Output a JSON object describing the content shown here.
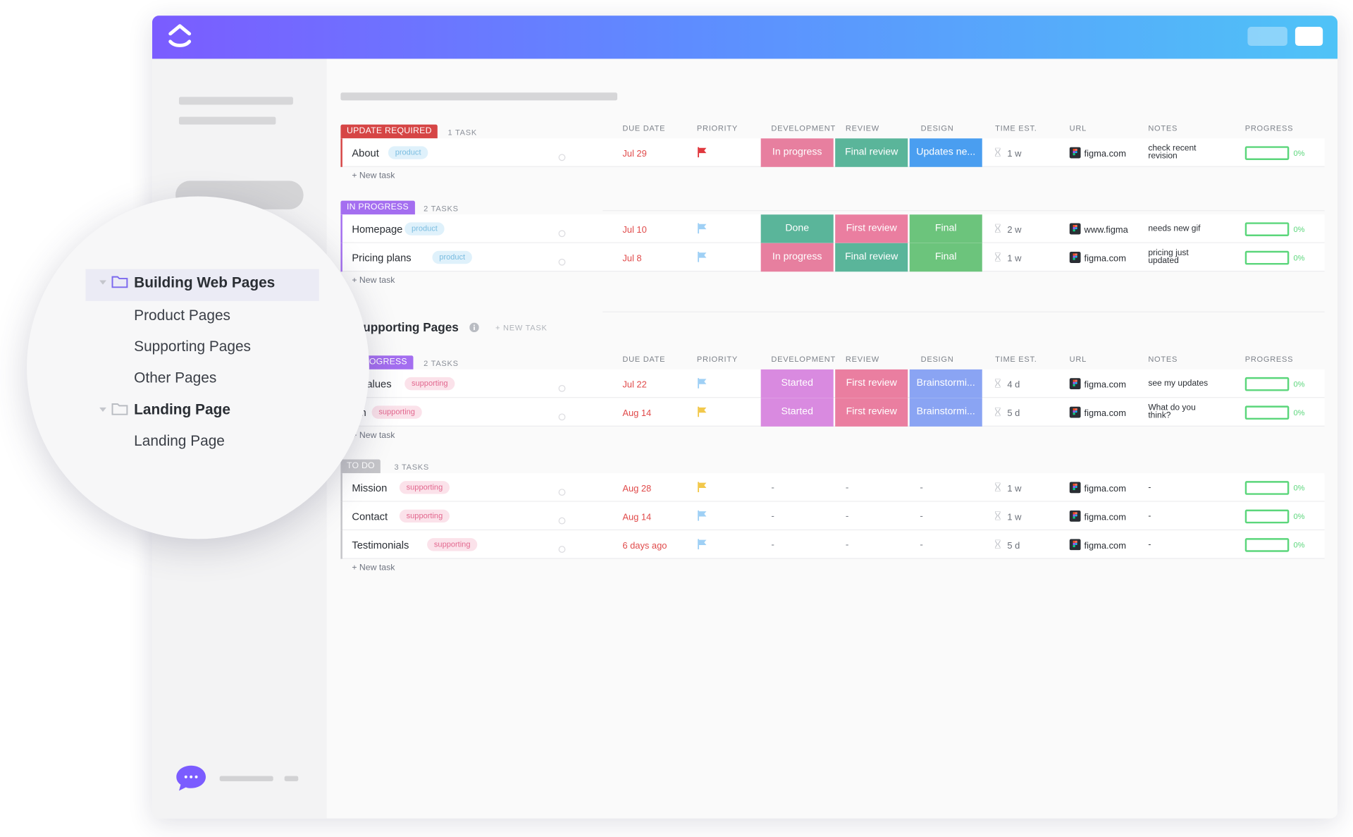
{
  "colors": {
    "header_gradient": [
      "#7b5cff",
      "#5e8cff",
      "#4fc3f7"
    ],
    "accent_purple": "#7b68ee",
    "status_update_required": "#d64545",
    "status_in_progress": "#a46ef0",
    "status_to_do": "#c4c4c8",
    "progress_green": "#5bd67b"
  },
  "icons": {
    "logo": "clickup-logo-icon",
    "chat": "chat-bubble-icon",
    "folder": "folder-icon",
    "caret": "caret-down-icon",
    "flag": "flag-icon",
    "hourglass": "hourglass-icon",
    "figma": "figma-icon",
    "info": "info-icon"
  },
  "columns": [
    "DUE DATE",
    "PRIORITY",
    "DEVELOPMENT",
    "REVIEW",
    "DESIGN",
    "TIME EST.",
    "URL",
    "NOTES",
    "PROGRESS"
  ],
  "new_task_label": "+ New task",
  "section1": {
    "groups": [
      {
        "status": "UPDATE REQUIRED",
        "count": "1 TASK",
        "tasks": [
          {
            "name": "About",
            "tag": "product",
            "due": "Jul 29",
            "priority": "red",
            "development": "In progress",
            "review": "Final review",
            "design": "Updates ne...",
            "est": "1 w",
            "url": "figma.com",
            "notes": [
              "check recent",
              "revision"
            ],
            "progress": "0%"
          }
        ]
      },
      {
        "status": "IN PROGRESS",
        "count": "2 TASKS",
        "tasks": [
          {
            "name": "Homepage",
            "tag": "product",
            "due": "Jul 10",
            "priority": "light-blue",
            "development": "Done",
            "review": "First review",
            "design": "Final",
            "est": "2 w",
            "url": "www.figma",
            "notes": [
              "needs new gif"
            ],
            "progress": "0%"
          },
          {
            "name": "Pricing plans",
            "tag": "product",
            "due": "Jul 8",
            "priority": "light-blue",
            "development": "In progress",
            "review": "Final review",
            "design": "Final",
            "est": "1 w",
            "url": "figma.com",
            "notes": [
              "pricing just",
              "updated"
            ],
            "progress": "0%"
          }
        ]
      }
    ]
  },
  "section2": {
    "title": "upporting Pages",
    "new_task_header": "+ NEW TASK",
    "groups": [
      {
        "status": "OGRESS",
        "count": "2 TASKS",
        "tasks": [
          {
            "name": "e Values",
            "tag": "supporting",
            "due": "Jul 22",
            "priority": "light-blue",
            "development": "Started",
            "review": "First review",
            "design": "Brainstormi...",
            "est": "4 d",
            "url": "figma.com",
            "notes": [
              "see my updates"
            ],
            "progress": "0%"
          },
          {
            "name": "am",
            "tag": "supporting",
            "due": "Aug 14",
            "priority": "yellow",
            "development": "Started",
            "review": "First review",
            "design": "Brainstormi...",
            "est": "5 d",
            "url": "figma.com",
            "notes": [
              "What do you",
              "think?"
            ],
            "progress": "0%"
          }
        ]
      },
      {
        "status": "TO DO",
        "count": "3 TASKS",
        "tasks": [
          {
            "name": "Mission",
            "tag": "supporting",
            "due": "Aug 28",
            "priority": "yellow",
            "development": "-",
            "review": "-",
            "design": "-",
            "est": "1 w",
            "url": "figma.com",
            "notes": [
              "-"
            ],
            "progress": "0%"
          },
          {
            "name": "Contact",
            "tag": "supporting",
            "due": "Aug 14",
            "priority": "light-blue",
            "development": "-",
            "review": "-",
            "design": "-",
            "est": "1 w",
            "url": "figma.com",
            "notes": [
              "-"
            ],
            "progress": "0%"
          },
          {
            "name": "Testimonials",
            "tag": "supporting",
            "due": "6 days ago",
            "priority": "light-blue",
            "development": "-",
            "review": "-",
            "design": "-",
            "est": "5 d",
            "url": "figma.com",
            "notes": [
              "-"
            ],
            "progress": "0%"
          }
        ]
      }
    ]
  },
  "magnifier": {
    "items": [
      {
        "label": "Building Web Pages",
        "level": 0,
        "bold": true,
        "active": true
      },
      {
        "label": "Product Pages",
        "level": 1
      },
      {
        "label": "Supporting Pages",
        "level": 1
      },
      {
        "label": "Other Pages",
        "level": 1
      },
      {
        "label": "Landing Page",
        "level": 0,
        "bold": true
      },
      {
        "label": "Landing Page",
        "level": 1
      }
    ]
  }
}
